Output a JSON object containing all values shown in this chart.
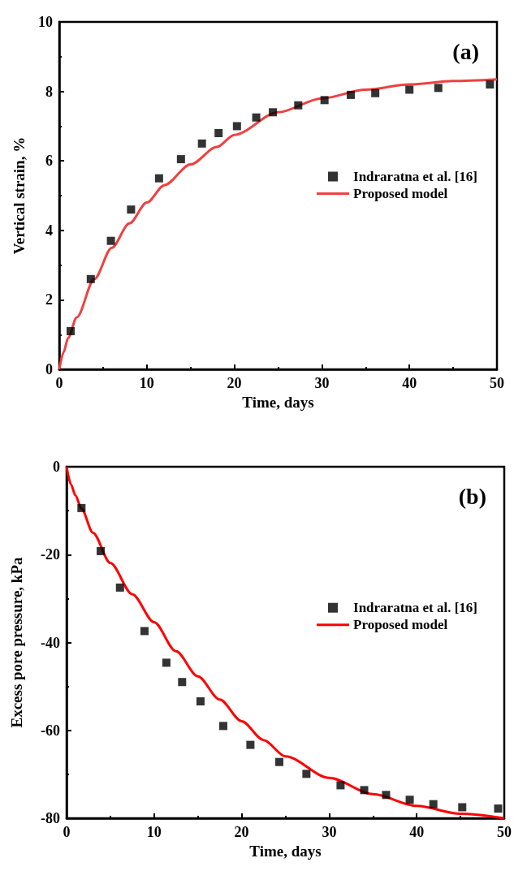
{
  "chart_data": [
    {
      "type": "scatter",
      "xlabel": "Time, days",
      "ylabel": "Vertical strain, %",
      "annotations": [
        "(a)"
      ],
      "xlim": [
        0,
        50
      ],
      "xticks": [
        0,
        10,
        20,
        30,
        40,
        50
      ],
      "ylim": [
        0,
        10
      ],
      "yticks": [
        0,
        2,
        4,
        6,
        8,
        10
      ],
      "grid": false,
      "legend": "right",
      "series": [
        {
          "name": "Indraratna et al. [16]",
          "marker": "square",
          "color": "#000000",
          "x": [
            1.3,
            3.6,
            5.9,
            8.2,
            11.4,
            13.9,
            16.3,
            18.2,
            20.3,
            22.5,
            24.4,
            27.3,
            30.3,
            33.3,
            36.1,
            40.0,
            43.3,
            49.2
          ],
          "values": [
            1.1,
            2.6,
            3.7,
            4.6,
            5.5,
            6.05,
            6.5,
            6.8,
            7.0,
            7.25,
            7.4,
            7.6,
            7.75,
            7.9,
            7.95,
            8.05,
            8.1,
            8.2
          ]
        },
        {
          "name": "Proposed model",
          "type": "line",
          "marker": "none",
          "line_style": "solid",
          "color": "#f04040",
          "x": [
            0,
            0.5,
            1,
            2,
            4,
            6,
            8,
            10,
            12,
            15,
            18,
            20,
            25,
            30,
            35,
            40,
            45,
            50
          ],
          "values": [
            0,
            0.5,
            0.9,
            1.5,
            2.6,
            3.5,
            4.2,
            4.8,
            5.3,
            5.9,
            6.4,
            6.75,
            7.4,
            7.8,
            8.05,
            8.2,
            8.3,
            8.35
          ]
        }
      ]
    },
    {
      "type": "scatter",
      "xlabel": "Time, days",
      "ylabel": "Excess pore pressure, kPa",
      "annotations": [
        "(b)"
      ],
      "xlim": [
        0,
        50
      ],
      "xticks": [
        0,
        10,
        20,
        30,
        40,
        50
      ],
      "ylim": [
        -80,
        0
      ],
      "yticks": [
        0,
        -20,
        -40,
        -60,
        -80
      ],
      "grid": false,
      "legend": "right",
      "series": [
        {
          "name": "Indraratna et al. [16]",
          "marker": "square",
          "color": "#000000",
          "x": [
            1.7,
            3.9,
            6.1,
            8.9,
            11.4,
            13.2,
            15.3,
            17.9,
            21.0,
            24.3,
            27.4,
            31.3,
            34.0,
            36.5,
            39.2,
            41.9,
            45.2,
            49.3
          ],
          "values": [
            -9.4,
            -19.2,
            -27.5,
            -37.4,
            -44.6,
            -49.0,
            -53.4,
            -59.0,
            -63.3,
            -67.2,
            -69.9,
            -72.5,
            -73.6,
            -74.7,
            -75.8,
            -76.8,
            -77.5,
            -77.8
          ]
        },
        {
          "name": "Proposed model",
          "type": "line",
          "marker": "none",
          "line_style": "solid",
          "color": "#ff0000",
          "x": [
            0,
            0.5,
            1,
            1.7,
            3,
            5,
            7.5,
            10,
            12.5,
            15,
            17.5,
            20,
            22.5,
            25,
            30,
            35,
            40,
            45,
            50
          ],
          "values": [
            0,
            -4,
            -6.5,
            -9.5,
            -15,
            -21.9,
            -29,
            -35.4,
            -42,
            -47.7,
            -53,
            -57.9,
            -62.2,
            -65.9,
            -70.8,
            -74.5,
            -77.2,
            -79,
            -80
          ]
        }
      ]
    }
  ]
}
